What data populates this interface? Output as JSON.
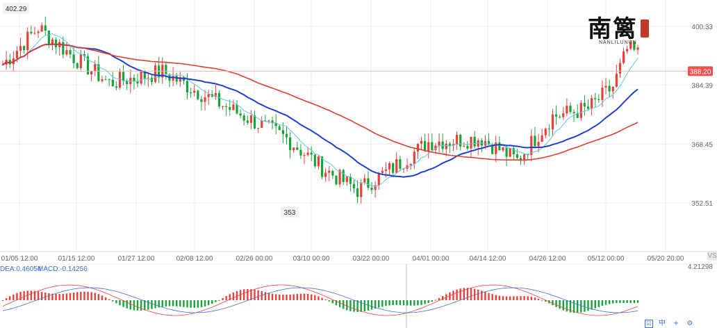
{
  "chart_data": {
    "type": "candlestick",
    "price_axis": {
      "ticks": [
        "400.33",
        "384.39",
        "368.45",
        "352.51"
      ],
      "values": [
        400.33,
        384.39,
        368.45,
        352.51
      ]
    },
    "time_axis": {
      "labels": [
        "01/05 12:00",
        "01/15 12:00",
        "01/27 12:00",
        "02/08 12:00",
        "02/26 00:00",
        "03/10 00:00",
        "03/22 00:00",
        "04/01 00:00",
        "04/14 12:00",
        "04/26 12:00",
        "05/12 00:00",
        "05/20 20:00"
      ]
    },
    "current_price": "388.20",
    "high_label": "402.29",
    "low_label": "353",
    "macd": {
      "dea_label": "DEA:0.46054",
      "macd_label": "MACD:-0.14256",
      "scale_label": "4.21298"
    },
    "colors": {
      "up": "#e8413b",
      "down": "#1aa23a",
      "ma_short": "#5bc8d8",
      "ma_mid": "#1f3fd0",
      "ma_long": "#d9412e",
      "price_line": "#f2b9a8",
      "badge": "#ef5350"
    }
  },
  "watermark": {
    "glyphs": "南篱",
    "subtitle": "NANLILUNUN"
  },
  "toolbar": {
    "icon1": "☑",
    "icon2": "中",
    "icon3": "+",
    "icon4": "⚙"
  },
  "corner_label": "VS"
}
